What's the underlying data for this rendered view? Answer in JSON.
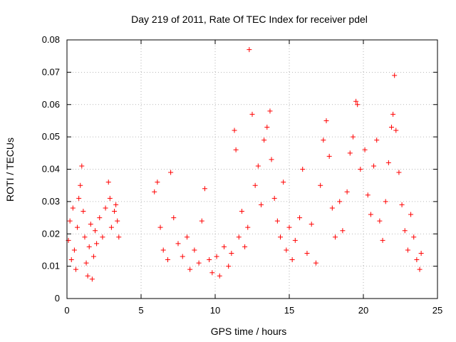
{
  "chart_data": {
    "type": "scatter",
    "title": "Day 219 of 2011, Rate Of TEC Index for receiver pdel",
    "xlabel": "GPS time / hours",
    "ylabel": "ROTI / TECUs",
    "xlim": [
      0,
      25
    ],
    "ylim": [
      0,
      0.08
    ],
    "xticks": [
      0,
      5,
      10,
      15,
      20,
      25
    ],
    "yticks": [
      0,
      0.01,
      0.02,
      0.03,
      0.04,
      0.05,
      0.06,
      0.07,
      0.08
    ],
    "ytick_labels": [
      "0",
      "0.01",
      "0.02",
      "0.03",
      "0.04",
      "0.05",
      "0.06",
      "0.07",
      "0.08"
    ],
    "grid": true,
    "marker": "plus",
    "color": "#ff0000",
    "series": [
      {
        "points": [
          [
            0.1,
            0.018
          ],
          [
            0.2,
            0.024
          ],
          [
            0.3,
            0.012
          ],
          [
            0.4,
            0.028
          ],
          [
            0.5,
            0.015
          ],
          [
            0.6,
            0.009
          ],
          [
            0.7,
            0.022
          ],
          [
            0.8,
            0.031
          ],
          [
            0.9,
            0.035
          ],
          [
            1.0,
            0.041
          ],
          [
            1.1,
            0.027
          ],
          [
            1.2,
            0.019
          ],
          [
            1.3,
            0.011
          ],
          [
            1.4,
            0.007
          ],
          [
            1.5,
            0.016
          ],
          [
            1.6,
            0.023
          ],
          [
            1.7,
            0.006
          ],
          [
            1.8,
            0.013
          ],
          [
            1.9,
            0.021
          ],
          [
            2.0,
            0.017
          ],
          [
            2.2,
            0.025
          ],
          [
            2.4,
            0.019
          ],
          [
            2.6,
            0.028
          ],
          [
            2.8,
            0.036
          ],
          [
            2.9,
            0.031
          ],
          [
            3.0,
            0.022
          ],
          [
            3.2,
            0.027
          ],
          [
            3.3,
            0.029
          ],
          [
            3.4,
            0.024
          ],
          [
            3.5,
            0.019
          ],
          [
            5.9,
            0.033
          ],
          [
            6.1,
            0.036
          ],
          [
            6.3,
            0.022
          ],
          [
            6.5,
            0.015
          ],
          [
            6.8,
            0.012
          ],
          [
            7.0,
            0.039
          ],
          [
            7.2,
            0.025
          ],
          [
            7.5,
            0.017
          ],
          [
            7.8,
            0.013
          ],
          [
            8.1,
            0.019
          ],
          [
            8.3,
            0.009
          ],
          [
            8.6,
            0.015
          ],
          [
            8.9,
            0.011
          ],
          [
            9.1,
            0.024
          ],
          [
            9.3,
            0.034
          ],
          [
            9.6,
            0.012
          ],
          [
            9.8,
            0.008
          ],
          [
            10.1,
            0.013
          ],
          [
            10.3,
            0.007
          ],
          [
            10.6,
            0.016
          ],
          [
            10.9,
            0.01
          ],
          [
            11.1,
            0.014
          ],
          [
            11.3,
            0.052
          ],
          [
            11.4,
            0.046
          ],
          [
            11.6,
            0.019
          ],
          [
            11.8,
            0.027
          ],
          [
            12.0,
            0.016
          ],
          [
            12.2,
            0.022
          ],
          [
            12.3,
            0.077
          ],
          [
            12.5,
            0.057
          ],
          [
            12.7,
            0.035
          ],
          [
            12.9,
            0.041
          ],
          [
            13.1,
            0.029
          ],
          [
            13.3,
            0.049
          ],
          [
            13.5,
            0.053
          ],
          [
            13.7,
            0.058
          ],
          [
            13.8,
            0.043
          ],
          [
            14.0,
            0.031
          ],
          [
            14.2,
            0.024
          ],
          [
            14.4,
            0.019
          ],
          [
            14.6,
            0.036
          ],
          [
            14.8,
            0.015
          ],
          [
            15.0,
            0.022
          ],
          [
            15.2,
            0.012
          ],
          [
            15.4,
            0.018
          ],
          [
            15.7,
            0.025
          ],
          [
            15.9,
            0.04
          ],
          [
            16.2,
            0.014
          ],
          [
            16.5,
            0.023
          ],
          [
            16.8,
            0.011
          ],
          [
            17.1,
            0.035
          ],
          [
            17.3,
            0.049
          ],
          [
            17.5,
            0.055
          ],
          [
            17.7,
            0.044
          ],
          [
            17.9,
            0.028
          ],
          [
            18.1,
            0.019
          ],
          [
            18.4,
            0.03
          ],
          [
            18.6,
            0.021
          ],
          [
            18.9,
            0.033
          ],
          [
            19.1,
            0.045
          ],
          [
            19.3,
            0.05
          ],
          [
            19.5,
            0.061
          ],
          [
            19.6,
            0.06
          ],
          [
            19.8,
            0.04
          ],
          [
            20.1,
            0.046
          ],
          [
            20.3,
            0.032
          ],
          [
            20.5,
            0.026
          ],
          [
            20.7,
            0.041
          ],
          [
            20.9,
            0.049
          ],
          [
            21.1,
            0.024
          ],
          [
            21.3,
            0.018
          ],
          [
            21.5,
            0.03
          ],
          [
            21.7,
            0.042
          ],
          [
            21.9,
            0.053
          ],
          [
            22.0,
            0.057
          ],
          [
            22.1,
            0.069
          ],
          [
            22.2,
            0.052
          ],
          [
            22.4,
            0.039
          ],
          [
            22.6,
            0.029
          ],
          [
            22.8,
            0.021
          ],
          [
            23.0,
            0.015
          ],
          [
            23.2,
            0.026
          ],
          [
            23.4,
            0.019
          ],
          [
            23.6,
            0.012
          ],
          [
            23.8,
            0.009
          ],
          [
            23.9,
            0.014
          ]
        ]
      }
    ]
  }
}
